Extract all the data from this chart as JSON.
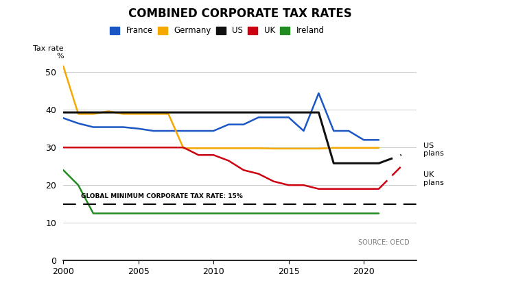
{
  "title": "COMBINED CORPORATE TAX RATES",
  "ylabel": "Tax rate\n%",
  "source": "SOURCE: OECD",
  "xlim": [
    2000,
    2023.5
  ],
  "ylim": [
    0,
    55
  ],
  "yticks": [
    0,
    10,
    20,
    30,
    40,
    50
  ],
  "xticks": [
    2000,
    2005,
    2010,
    2015,
    2020
  ],
  "global_min_rate": 15,
  "global_min_label": "GLOBAL MINIMUM CORPORATE TAX RATE: 15%",
  "france": {
    "color": "#1a56c4",
    "years": [
      2000,
      2001,
      2002,
      2003,
      2004,
      2005,
      2006,
      2007,
      2008,
      2009,
      2010,
      2011,
      2012,
      2013,
      2014,
      2015,
      2016,
      2017,
      2018,
      2019,
      2020,
      2021
    ],
    "values": [
      37.8,
      36.4,
      35.4,
      35.4,
      35.4,
      35.0,
      34.4,
      34.4,
      34.4,
      34.4,
      34.4,
      36.1,
      36.1,
      38.0,
      38.0,
      38.0,
      34.4,
      44.4,
      34.4,
      34.4,
      32.0,
      32.0
    ]
  },
  "germany": {
    "color": "#f5a800",
    "years": [
      2000,
      2001,
      2002,
      2003,
      2004,
      2005,
      2006,
      2007,
      2008,
      2009,
      2010,
      2011,
      2012,
      2013,
      2014,
      2015,
      2016,
      2017,
      2018,
      2019,
      2020,
      2021
    ],
    "values": [
      51.6,
      38.9,
      38.9,
      39.6,
      38.9,
      38.9,
      38.9,
      38.9,
      29.8,
      29.8,
      29.8,
      29.8,
      29.8,
      29.8,
      29.7,
      29.7,
      29.7,
      29.7,
      29.9,
      29.9,
      29.9,
      29.9
    ]
  },
  "us": {
    "color": "#111111",
    "years": [
      2000,
      2001,
      2002,
      2003,
      2004,
      2005,
      2006,
      2007,
      2008,
      2009,
      2010,
      2011,
      2012,
      2013,
      2014,
      2015,
      2016,
      2017,
      2018,
      2019,
      2020,
      2021
    ],
    "values": [
      39.3,
      39.3,
      39.3,
      39.3,
      39.3,
      39.3,
      39.3,
      39.3,
      39.3,
      39.3,
      39.3,
      39.3,
      39.3,
      39.3,
      39.3,
      39.3,
      39.3,
      39.3,
      25.8,
      25.8,
      25.8,
      25.8
    ]
  },
  "us_plans": {
    "color": "#111111",
    "years": [
      2021,
      2022.5
    ],
    "values": [
      25.8,
      28.0
    ]
  },
  "uk": {
    "color": "#cc0011",
    "years": [
      2000,
      2001,
      2002,
      2003,
      2004,
      2005,
      2006,
      2007,
      2008,
      2009,
      2010,
      2011,
      2012,
      2013,
      2014,
      2015,
      2016,
      2017,
      2018,
      2019,
      2020,
      2021
    ],
    "values": [
      30.0,
      30.0,
      30.0,
      30.0,
      30.0,
      30.0,
      30.0,
      30.0,
      30.0,
      28.0,
      28.0,
      26.5,
      24.0,
      23.0,
      21.0,
      20.0,
      20.0,
      19.0,
      19.0,
      19.0,
      19.0,
      19.0
    ]
  },
  "uk_plans": {
    "color": "#cc0011",
    "years": [
      2021,
      2022.5
    ],
    "values": [
      19.0,
      25.0
    ]
  },
  "ireland": {
    "color": "#228b22",
    "years": [
      2000,
      2001,
      2002,
      2003,
      2004,
      2005,
      2006,
      2007,
      2008,
      2009,
      2010,
      2011,
      2012,
      2013,
      2014,
      2015,
      2016,
      2017,
      2018,
      2019,
      2020,
      2021
    ],
    "values": [
      24.0,
      20.0,
      12.5,
      12.5,
      12.5,
      12.5,
      12.5,
      12.5,
      12.5,
      12.5,
      12.5,
      12.5,
      12.5,
      12.5,
      12.5,
      12.5,
      12.5,
      12.5,
      12.5,
      12.5,
      12.5,
      12.5
    ]
  },
  "legend_entries": [
    "France",
    "Germany",
    "US",
    "UK",
    "Ireland"
  ],
  "legend_colors": [
    "#1a56c4",
    "#f5a800",
    "#111111",
    "#cc0011",
    "#228b22"
  ]
}
